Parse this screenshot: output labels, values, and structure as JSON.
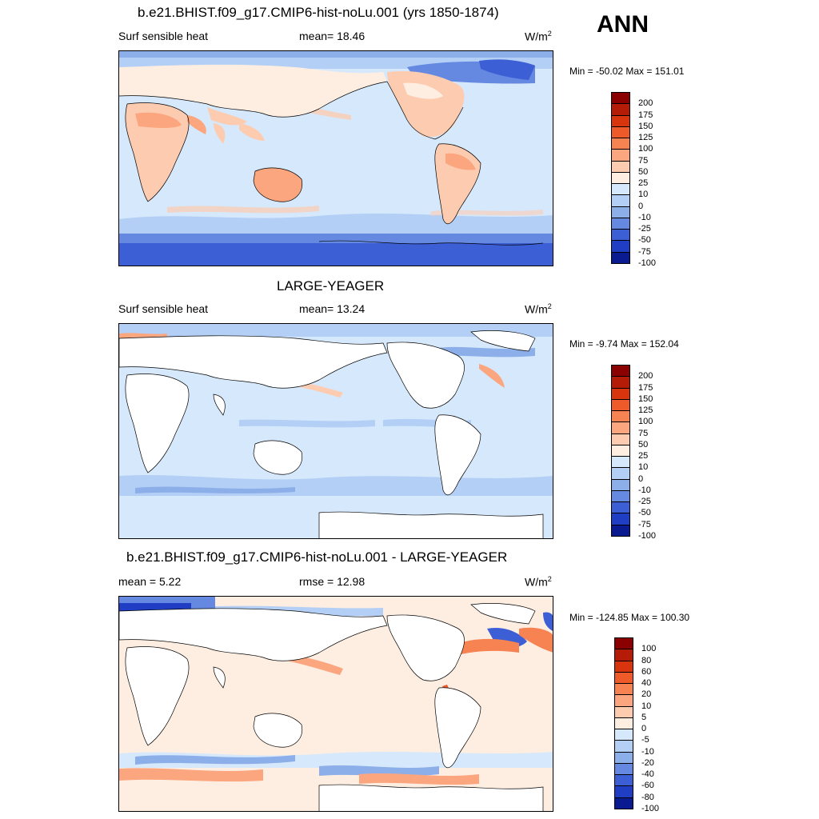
{
  "season": "ANN",
  "panels": [
    {
      "title": "b.e21.BHIST.f09_g17.CMIP6-hist-noLu.001 (yrs 1850-1874)",
      "left_label": "Surf sensible heat",
      "mid_label": "mean=  18.46",
      "units_base": "W/m",
      "units_sup": "2",
      "minmax": "Min = -50.02 Max = 151.01",
      "colorbar_labels": [
        "200",
        "175",
        "150",
        "125",
        "100",
        "75",
        "50",
        "25",
        "10",
        "0",
        "-10",
        "-25",
        "-50",
        "-75",
        "-100"
      ],
      "colorbar_colors": [
        "#8b0000",
        "#b41c08",
        "#d8340e",
        "#ee5a2a",
        "#f78252",
        "#fba67f",
        "#fdccb0",
        "#feeee2",
        "#d6e8fb",
        "#b3cff5",
        "#8caee9",
        "#6588e0",
        "#3d5fd6",
        "#1f3ec4",
        "#0a1a90"
      ]
    },
    {
      "title": "LARGE-YEAGER",
      "left_label": "Surf sensible heat",
      "mid_label": "mean=  13.24",
      "units_base": "W/m",
      "units_sup": "2",
      "minmax": "Min =  -9.74 Max = 152.04",
      "colorbar_labels": [
        "200",
        "175",
        "150",
        "125",
        "100",
        "75",
        "50",
        "25",
        "10",
        "0",
        "-10",
        "-25",
        "-50",
        "-75",
        "-100"
      ],
      "colorbar_colors": [
        "#8b0000",
        "#b41c08",
        "#d8340e",
        "#ee5a2a",
        "#f78252",
        "#fba67f",
        "#fdccb0",
        "#feeee2",
        "#d6e8fb",
        "#b3cff5",
        "#8caee9",
        "#6588e0",
        "#3d5fd6",
        "#1f3ec4",
        "#0a1a90"
      ]
    },
    {
      "title": "b.e21.BHIST.f09_g17.CMIP6-hist-noLu.001 - LARGE-YEAGER",
      "left_label": "mean =   5.22",
      "mid_label": "rmse =  12.98",
      "units_base": "W/m",
      "units_sup": "2",
      "minmax": "Min = -124.85 Max = 100.30",
      "colorbar_labels": [
        "100",
        "80",
        "60",
        "40",
        "20",
        "10",
        "5",
        "0",
        "-5",
        "-10",
        "-20",
        "-40",
        "-60",
        "-80",
        "-100"
      ],
      "colorbar_colors": [
        "#8b0000",
        "#b41c08",
        "#d8340e",
        "#ee5a2a",
        "#f78252",
        "#fba67f",
        "#fdccb0",
        "#feeee2",
        "#d6e8fb",
        "#b3cff5",
        "#8caee9",
        "#6588e0",
        "#3d5fd6",
        "#1f3ec4",
        "#0a1a90"
      ]
    }
  ]
}
